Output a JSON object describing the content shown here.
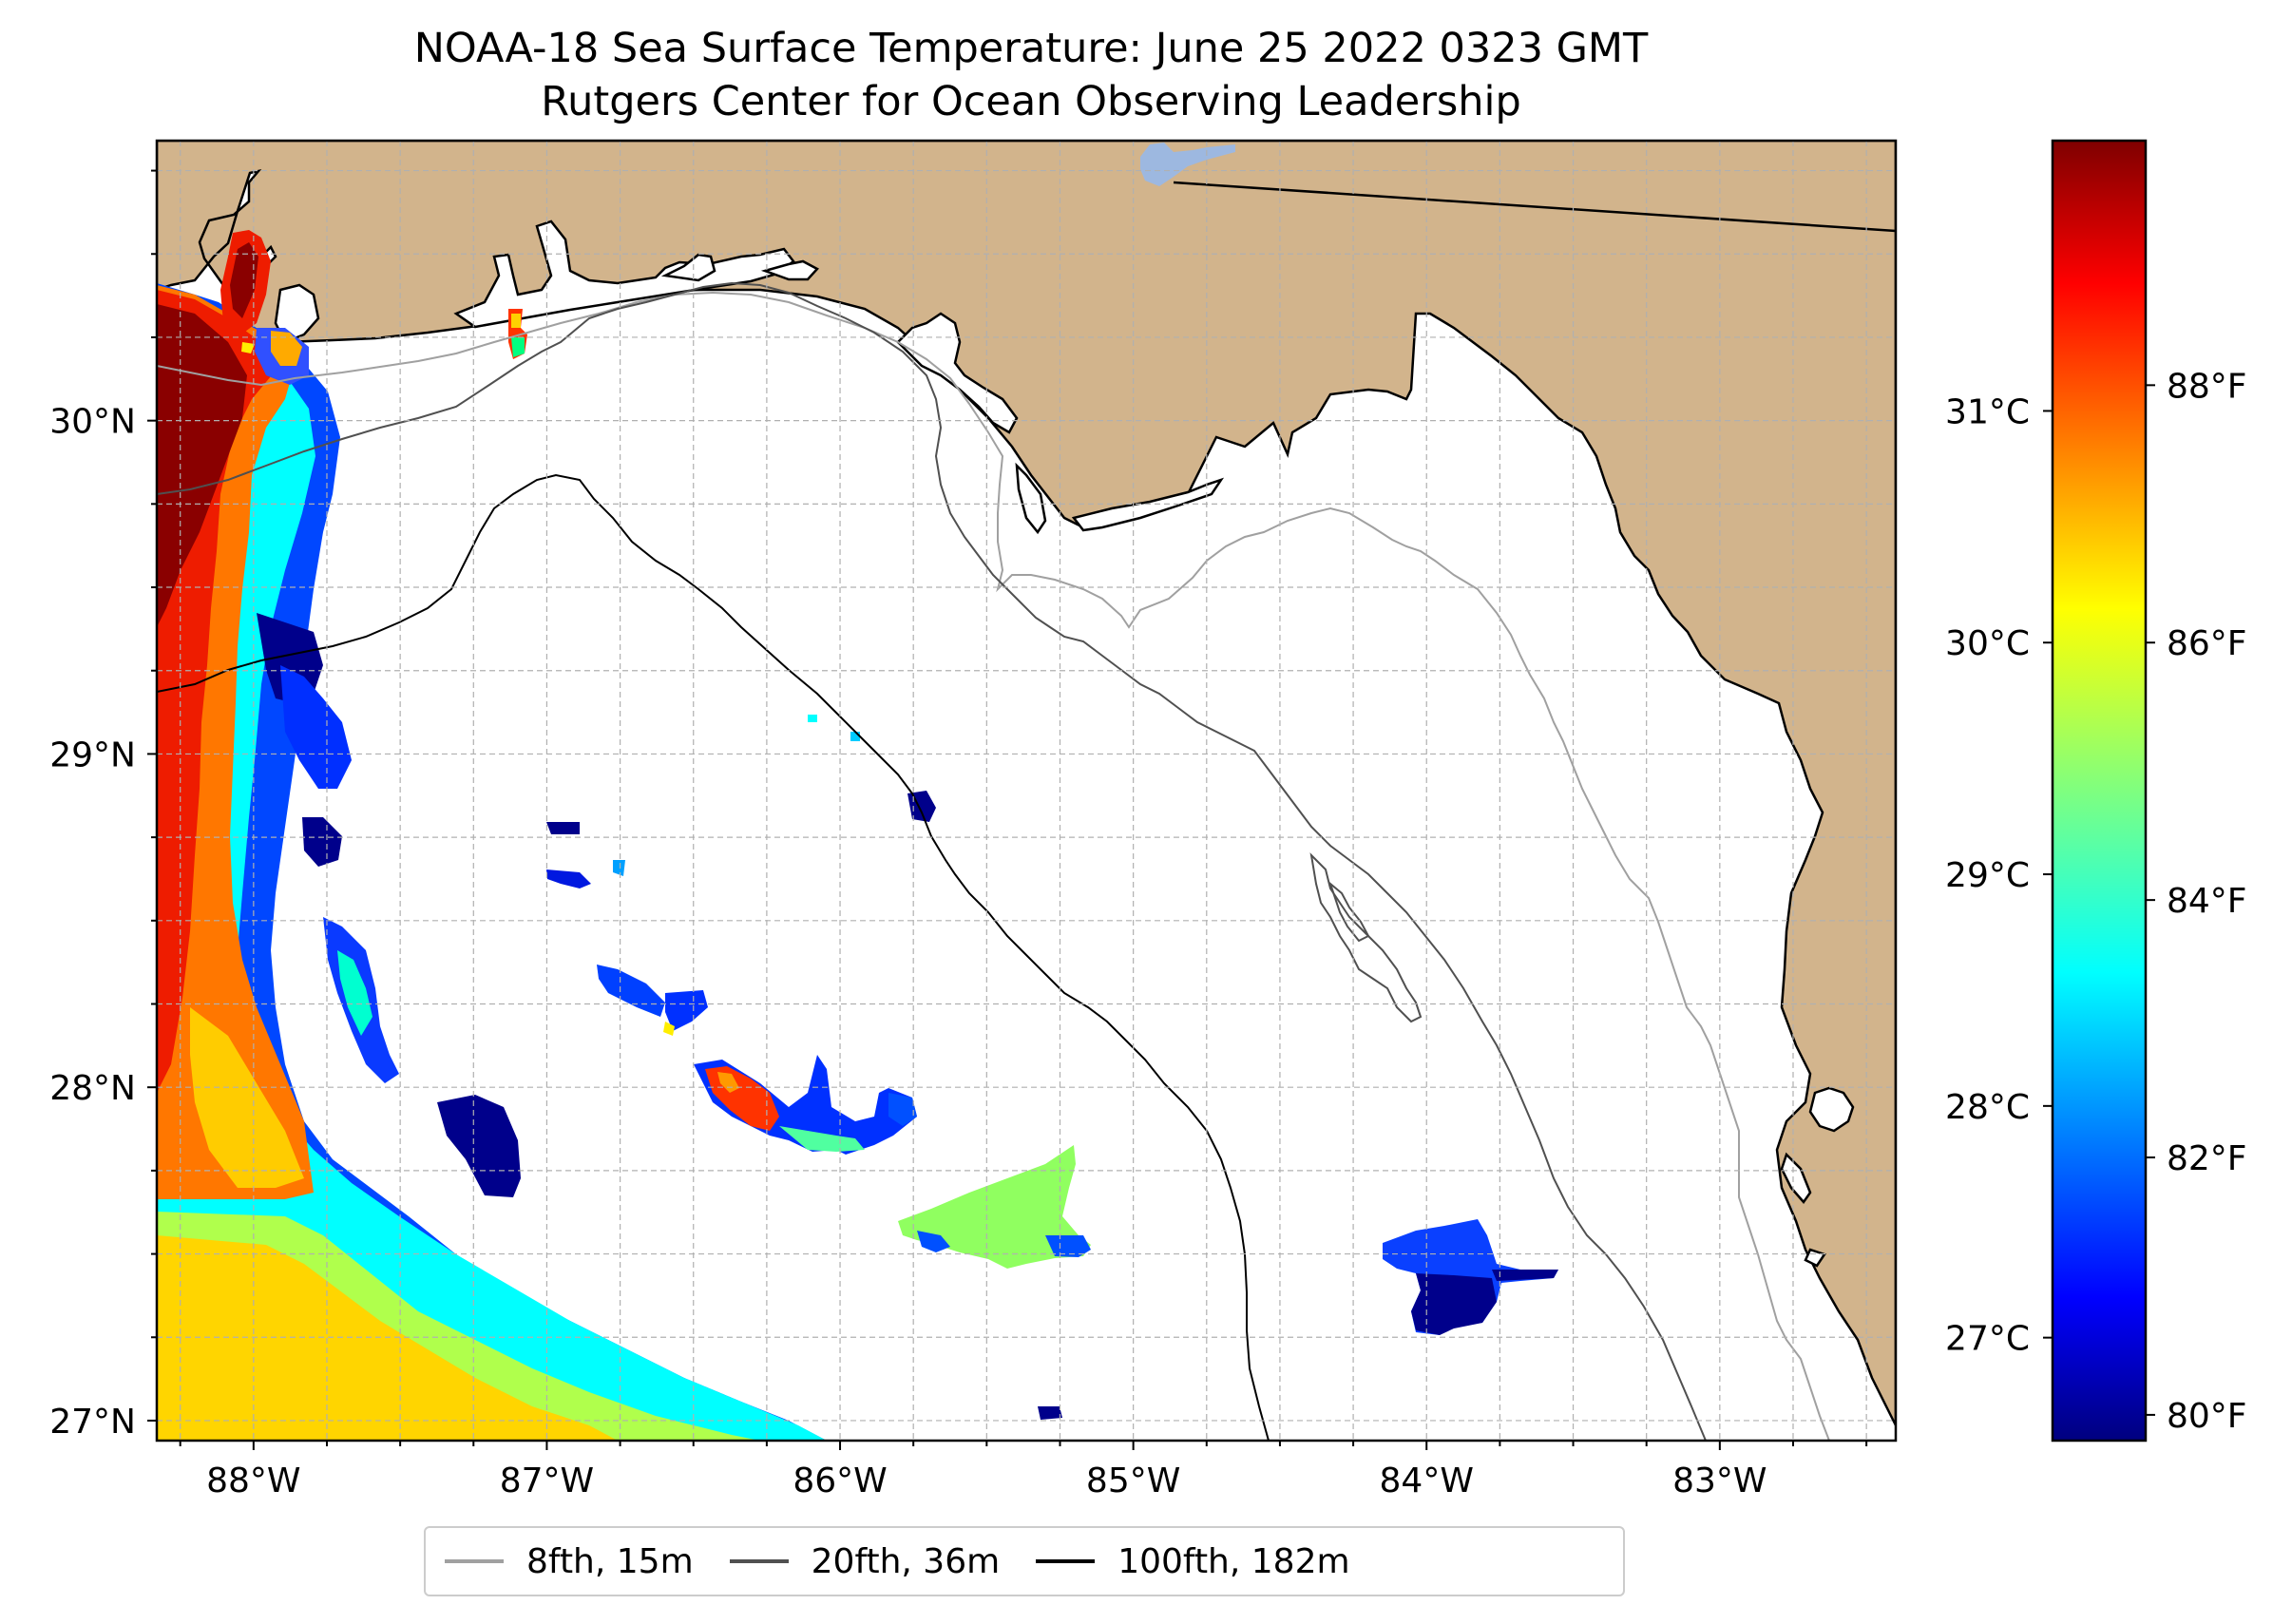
{
  "title": {
    "line1": "NOAA-18 Sea Surface Temperature: June 25 2022 0323 GMT",
    "line2": "Rutgers Center for Ocean Observing Leadership"
  },
  "map": {
    "lon_range": [
      -88.33,
      -82.4
    ],
    "lat_range": [
      26.94,
      30.84
    ],
    "colors": {
      "land": "#d2b48c",
      "ocean": "#ffffff",
      "lake": "#9db8e0",
      "grid": "#b0b0b0"
    },
    "lon_labels": [
      "88°W",
      "87°W",
      "86°W",
      "85°W",
      "84°W",
      "83°W"
    ],
    "lat_labels": [
      "30°N",
      "29°N",
      "28°N",
      "27°N"
    ]
  },
  "colorbar": {
    "colormap": "jet",
    "range_f": [
      79.8,
      89.9
    ],
    "celsius_labels": [
      "31°C",
      "30°C",
      "29°C",
      "28°C",
      "27°C"
    ],
    "fahrenheit_labels": [
      "88°F",
      "86°F",
      "84°F",
      "82°F",
      "80°F"
    ]
  },
  "legend": [
    {
      "label": "8fth, 15m",
      "color": "#a0a0a0"
    },
    {
      "label": "20fth, 36m",
      "color": "#505050"
    },
    {
      "label": "100fth, 182m",
      "color": "#000000"
    }
  ]
}
